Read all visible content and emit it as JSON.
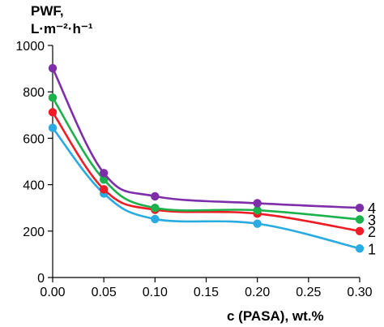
{
  "chart_data": {
    "type": "line",
    "ylabel": [
      "PWF,",
      "L·m⁻²·h⁻¹"
    ],
    "xlabel": "c (PASA), wt.%",
    "xlim": [
      0,
      0.3
    ],
    "ylim": [
      0,
      1000
    ],
    "xticks": [
      "0.00",
      "0.05",
      "0.10",
      "0.15",
      "0.20",
      "0.25",
      "0.30"
    ],
    "yticks": [
      "0",
      "200",
      "400",
      "600",
      "800",
      "1000"
    ],
    "grid": false,
    "series": [
      {
        "label": "1",
        "color": "#29abe2",
        "x": [
          0,
          0.05,
          0.1,
          0.2,
          0.3
        ],
        "y": [
          645,
          362,
          252,
          232,
          125
        ]
      },
      {
        "label": "2",
        "color": "#ee1c25",
        "x": [
          0,
          0.05,
          0.1,
          0.2,
          0.3
        ],
        "y": [
          712,
          380,
          292,
          275,
          200
        ]
      },
      {
        "label": "3",
        "color": "#1db14b",
        "x": [
          0,
          0.05,
          0.1,
          0.2,
          0.3
        ],
        "y": [
          775,
          422,
          300,
          290,
          250
        ]
      },
      {
        "label": "4",
        "color": "#7d2ea8",
        "x": [
          0,
          0.05,
          0.1,
          0.2,
          0.3
        ],
        "y": [
          902,
          450,
          350,
          320,
          300
        ]
      }
    ]
  }
}
